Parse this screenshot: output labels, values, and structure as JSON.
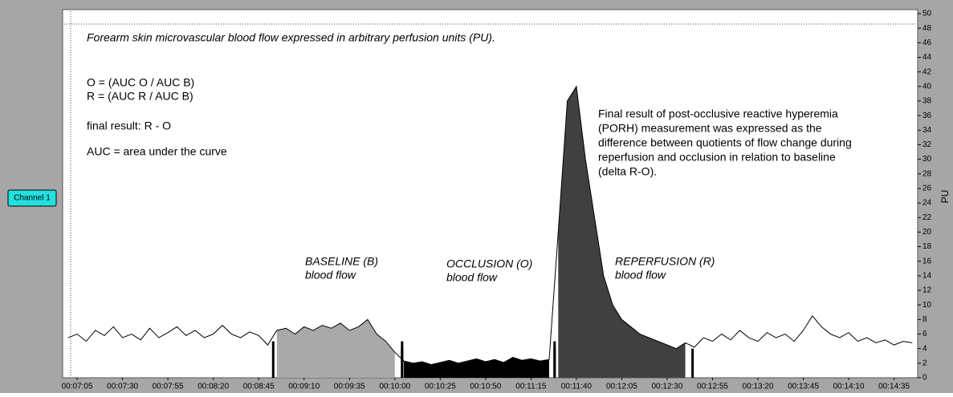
{
  "chart_data": {
    "type": "line",
    "title": "Forearm skin microvascular blood flow expressed in arbitrary perfusion units (PU).",
    "channel": "Channel 1",
    "y_label": "PU",
    "annotations_left": [
      "O = (AUC O / AUC B)",
      "R = (AUC R / AUC B)",
      "final result: R - O",
      "AUC = area under the curve"
    ],
    "annotation_right": [
      "Final result of post-occlusive reactive hyperemia",
      "(PORH) measurement was expressed as the",
      "difference between quotients of flow change during",
      "reperfusion and occlusion in relation to baseline",
      "(delta R-O)."
    ],
    "regions": [
      {
        "name": "BASELINE (B)",
        "subtitle": "blood flow",
        "start": 533,
        "end": 604,
        "color": "#a9a9a9"
      },
      {
        "name": "OCCLUSION (O)",
        "subtitle": "blood flow",
        "start": 604,
        "end": 688,
        "color": "#000000"
      },
      {
        "name": "REPERFUSION (R)",
        "subtitle": "blood flow",
        "start": 688,
        "end": 764,
        "color": "#404040"
      }
    ],
    "x": [
      420,
      425,
      430,
      435,
      440,
      445,
      450,
      455,
      460,
      465,
      470,
      475,
      480,
      485,
      490,
      495,
      500,
      505,
      510,
      515,
      520,
      525,
      530,
      535,
      540,
      545,
      550,
      555,
      560,
      565,
      570,
      575,
      580,
      585,
      590,
      595,
      600,
      605,
      610,
      615,
      620,
      625,
      630,
      635,
      640,
      645,
      650,
      655,
      660,
      665,
      670,
      675,
      680,
      685,
      690,
      695,
      700,
      705,
      710,
      715,
      720,
      725,
      730,
      735,
      740,
      745,
      750,
      755,
      760,
      765,
      770,
      775,
      780,
      785,
      790,
      795,
      800,
      805,
      810,
      815,
      820,
      825,
      830,
      835,
      840,
      845,
      850,
      855,
      860,
      865,
      870,
      875,
      880,
      885
    ],
    "series": [
      {
        "name": "Channel 1",
        "color": "#000000",
        "values": [
          5.5,
          6,
          5,
          6.5,
          5.8,
          7,
          5.5,
          6,
          5.2,
          6.8,
          5.5,
          6.2,
          7,
          5.8,
          6.5,
          5.5,
          6,
          7.2,
          6,
          5.5,
          6.3,
          5.8,
          4.5,
          6.5,
          6.8,
          6,
          7,
          6.5,
          7.2,
          6.8,
          7.5,
          6.5,
          7,
          8,
          6,
          5,
          3.5,
          2.3,
          2,
          2.2,
          1.8,
          2.1,
          2.4,
          2,
          2.3,
          2.6,
          2.2,
          2.5,
          2.1,
          2.8,
          2.4,
          2.6,
          2.3,
          2.5,
          20,
          38,
          40,
          30,
          22,
          14,
          10,
          8,
          7,
          6,
          5.5,
          5,
          4.5,
          4,
          4.8,
          4.2,
          5.5,
          5,
          6,
          5.2,
          6.5,
          5.5,
          5,
          6.2,
          5.5,
          6,
          5,
          6.5,
          8.5,
          7,
          6,
          5.5,
          6.2,
          5,
          5.5,
          4.8,
          5.2,
          4.5,
          5,
          4.8
        ]
      }
    ],
    "xlim": [
      417,
      888
    ],
    "xticks": [
      {
        "value": 425,
        "label": "00:07:05"
      },
      {
        "value": 450,
        "label": "00:07:30"
      },
      {
        "value": 475,
        "label": "00:07:55"
      },
      {
        "value": 500,
        "label": "00:08:20"
      },
      {
        "value": 525,
        "label": "00:08:45"
      },
      {
        "value": 550,
        "label": "00:09:10"
      },
      {
        "value": 575,
        "label": "00:09:35"
      },
      {
        "value": 600,
        "label": "00:10:00"
      },
      {
        "value": 625,
        "label": "00:10:25"
      },
      {
        "value": 650,
        "label": "00:10:50"
      },
      {
        "value": 675,
        "label": "00:11:15"
      },
      {
        "value": 700,
        "label": "00:11:40"
      },
      {
        "value": 725,
        "label": "00:12:05"
      },
      {
        "value": 750,
        "label": "00:12:30"
      },
      {
        "value": 775,
        "label": "00:12:55"
      },
      {
        "value": 800,
        "label": "00:13:20"
      },
      {
        "value": 825,
        "label": "00:13:45"
      },
      {
        "value": 850,
        "label": "00:14:10"
      },
      {
        "value": 875,
        "label": "00:14:35"
      }
    ],
    "ylim": [
      0,
      50
    ],
    "yticks": [
      0,
      2,
      4,
      6,
      8,
      10,
      12,
      14,
      16,
      18,
      20,
      22,
      24,
      26,
      28,
      30,
      32,
      34,
      36,
      38,
      40,
      42,
      44,
      46,
      48,
      50
    ]
  }
}
